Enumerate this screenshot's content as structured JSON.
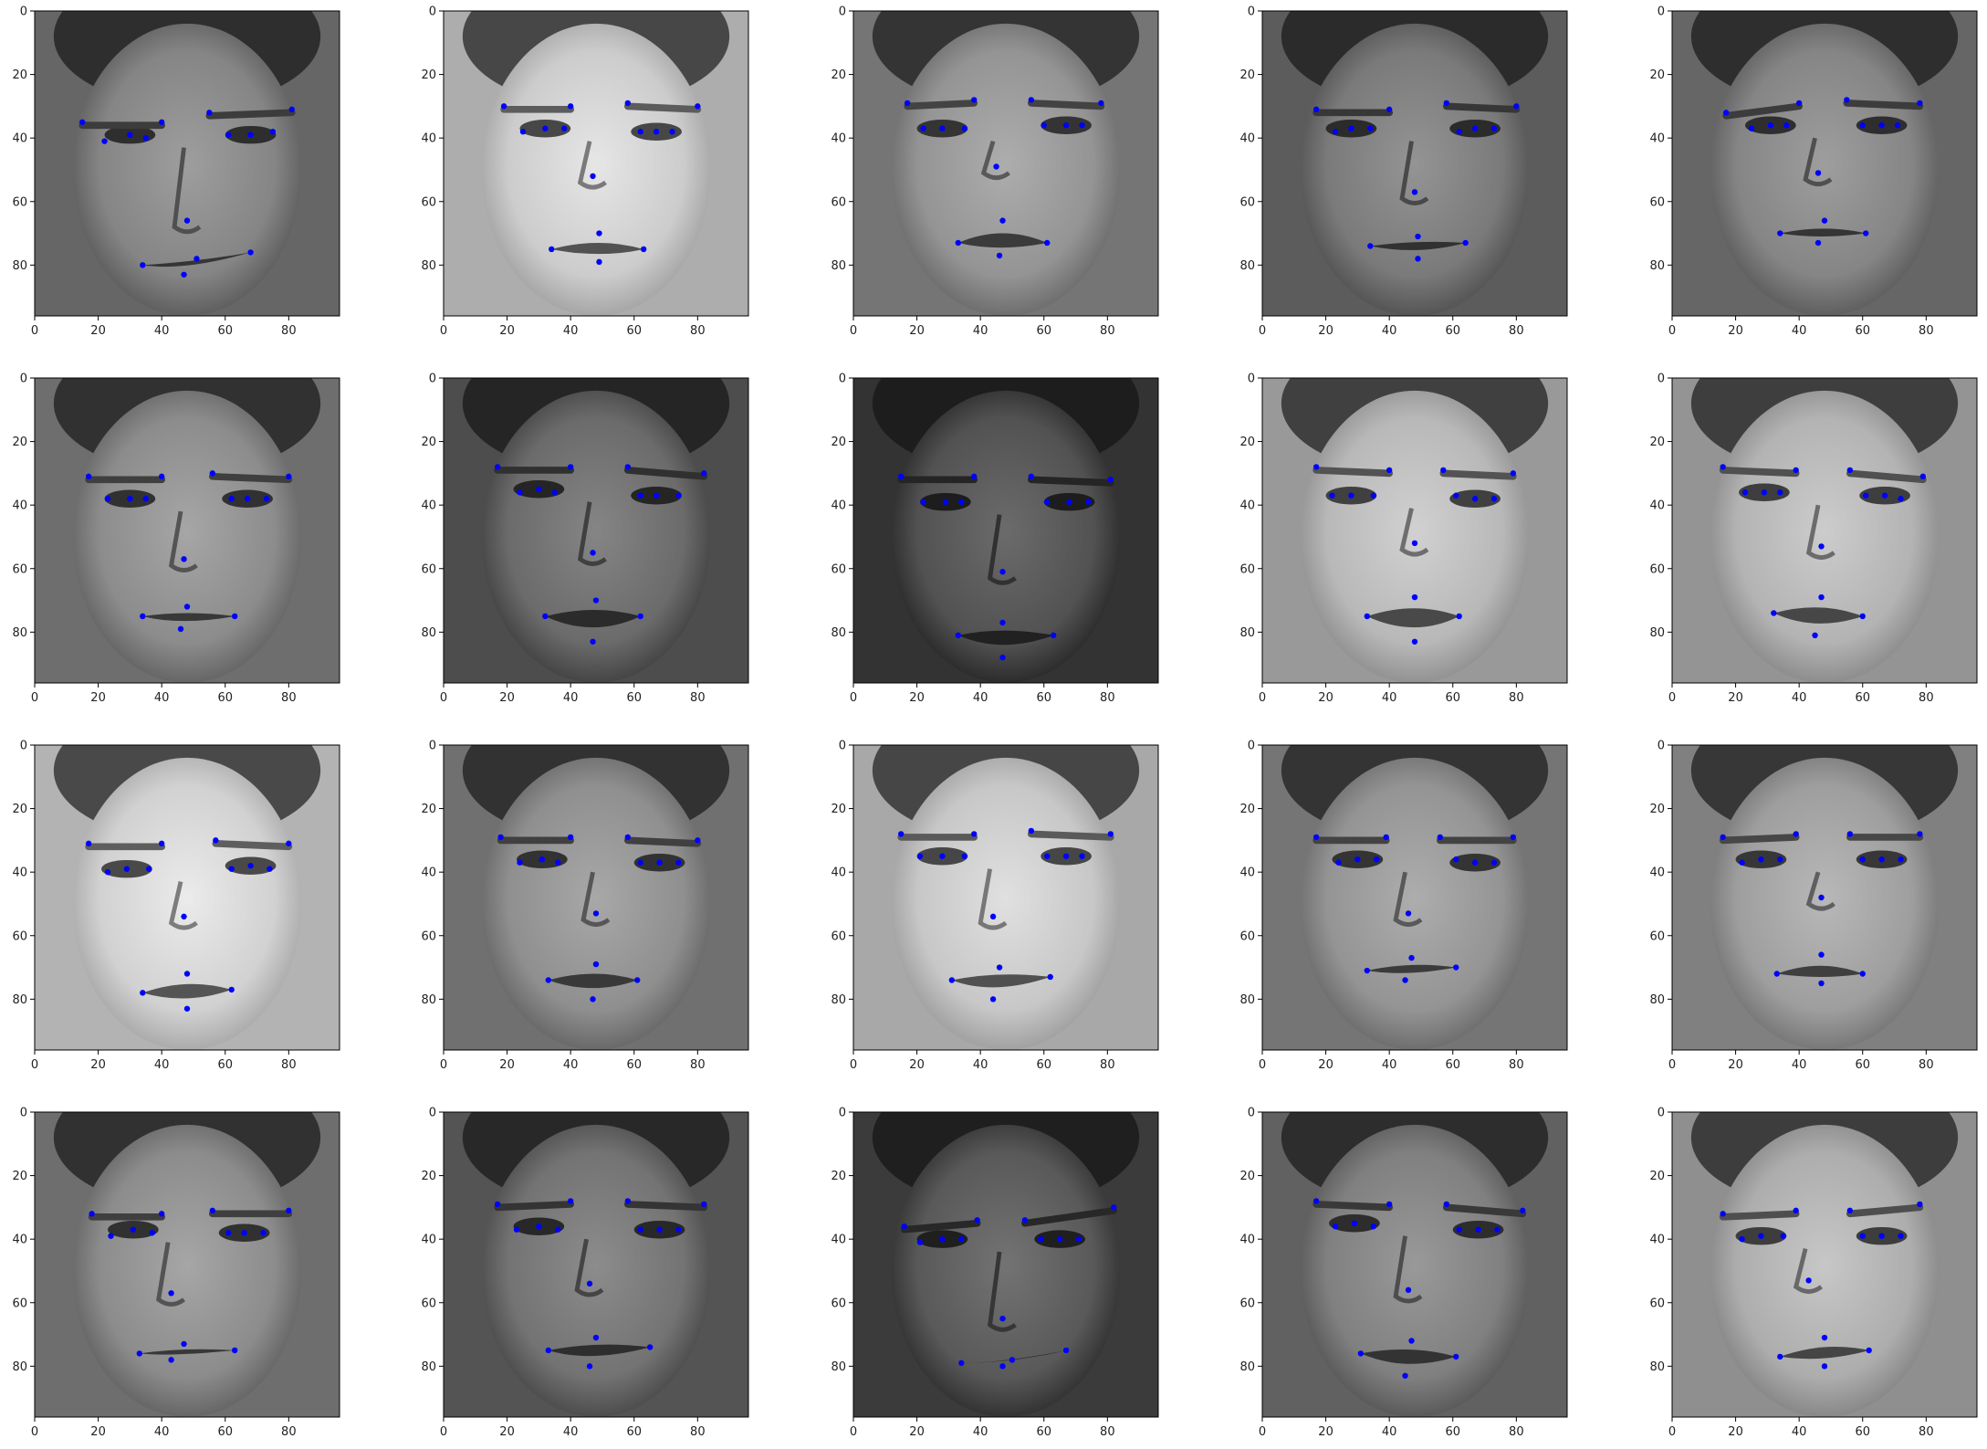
{
  "figure": {
    "rows": 4,
    "cols": 5,
    "marker_color": "#0000ff",
    "axis_color": "#000000",
    "image_colormap": "gray"
  },
  "axes": {
    "x_ticks": [
      0,
      20,
      40,
      60,
      80
    ],
    "y_ticks": [
      0,
      20,
      40,
      60,
      80
    ],
    "xlim": [
      0,
      96
    ],
    "ylim": [
      96,
      0
    ]
  },
  "panels": [
    {
      "tone": 0.52,
      "points": [
        [
          15,
          35
        ],
        [
          22,
          41
        ],
        [
          30,
          39
        ],
        [
          35,
          40
        ],
        [
          40,
          35
        ],
        [
          55,
          32
        ],
        [
          61,
          39
        ],
        [
          68,
          39
        ],
        [
          75,
          38
        ],
        [
          81,
          31
        ],
        [
          48,
          66
        ],
        [
          34,
          80
        ],
        [
          51,
          78
        ],
        [
          68,
          76
        ],
        [
          47,
          83
        ]
      ]
    },
    {
      "tone": 0.8,
      "points": [
        [
          19,
          30
        ],
        [
          25,
          38
        ],
        [
          32,
          37
        ],
        [
          38,
          37
        ],
        [
          40,
          30
        ],
        [
          58,
          29
        ],
        [
          62,
          38
        ],
        [
          67,
          38
        ],
        [
          72,
          38
        ],
        [
          80,
          30
        ],
        [
          47,
          52
        ],
        [
          34,
          75
        ],
        [
          49,
          70
        ],
        [
          63,
          75
        ],
        [
          49,
          79
        ]
      ]
    },
    {
      "tone": 0.58,
      "points": [
        [
          17,
          29
        ],
        [
          22,
          37
        ],
        [
          28,
          37
        ],
        [
          35,
          37
        ],
        [
          38,
          28
        ],
        [
          56,
          28
        ],
        [
          60,
          36
        ],
        [
          67,
          36
        ],
        [
          72,
          36
        ],
        [
          78,
          29
        ],
        [
          45,
          49
        ],
        [
          33,
          73
        ],
        [
          47,
          66
        ],
        [
          61,
          73
        ],
        [
          46,
          77
        ]
      ]
    },
    {
      "tone": 0.48,
      "points": [
        [
          17,
          31
        ],
        [
          23,
          38
        ],
        [
          28,
          37
        ],
        [
          34,
          37
        ],
        [
          40,
          31
        ],
        [
          58,
          29
        ],
        [
          62,
          38
        ],
        [
          67,
          37
        ],
        [
          73,
          37
        ],
        [
          80,
          30
        ],
        [
          48,
          57
        ],
        [
          34,
          74
        ],
        [
          49,
          71
        ],
        [
          64,
          73
        ],
        [
          49,
          78
        ]
      ]
    },
    {
      "tone": 0.52,
      "points": [
        [
          17,
          32
        ],
        [
          25,
          37
        ],
        [
          31,
          36
        ],
        [
          36,
          36
        ],
        [
          40,
          29
        ],
        [
          55,
          28
        ],
        [
          60,
          36
        ],
        [
          66,
          36
        ],
        [
          71,
          36
        ],
        [
          78,
          29
        ],
        [
          46,
          51
        ],
        [
          34,
          70
        ],
        [
          48,
          66
        ],
        [
          61,
          70
        ],
        [
          46,
          73
        ]
      ]
    },
    {
      "tone": 0.55,
      "points": [
        [
          17,
          31
        ],
        [
          23,
          38
        ],
        [
          30,
          38
        ],
        [
          35,
          38
        ],
        [
          40,
          31
        ],
        [
          56,
          30
        ],
        [
          62,
          38
        ],
        [
          67,
          38
        ],
        [
          73,
          38
        ],
        [
          80,
          31
        ],
        [
          47,
          57
        ],
        [
          34,
          75
        ],
        [
          48,
          72
        ],
        [
          63,
          75
        ],
        [
          46,
          79
        ]
      ]
    },
    {
      "tone": 0.42,
      "points": [
        [
          17,
          28
        ],
        [
          24,
          36
        ],
        [
          30,
          35
        ],
        [
          35,
          36
        ],
        [
          40,
          28
        ],
        [
          58,
          28
        ],
        [
          62,
          37
        ],
        [
          67,
          37
        ],
        [
          74,
          37
        ],
        [
          82,
          30
        ],
        [
          47,
          55
        ],
        [
          32,
          75
        ],
        [
          48,
          70
        ],
        [
          62,
          75
        ],
        [
          47,
          83
        ]
      ]
    },
    {
      "tone": 0.32,
      "points": [
        [
          15,
          31
        ],
        [
          22,
          39
        ],
        [
          29,
          39
        ],
        [
          34,
          39
        ],
        [
          38,
          31
        ],
        [
          56,
          31
        ],
        [
          61,
          39
        ],
        [
          68,
          39
        ],
        [
          74,
          39
        ],
        [
          81,
          32
        ],
        [
          47,
          61
        ],
        [
          33,
          81
        ],
        [
          47,
          77
        ],
        [
          63,
          81
        ],
        [
          47,
          88
        ]
      ]
    },
    {
      "tone": 0.72,
      "points": [
        [
          17,
          28
        ],
        [
          22,
          37
        ],
        [
          28,
          37
        ],
        [
          35,
          37
        ],
        [
          40,
          29
        ],
        [
          57,
          29
        ],
        [
          61,
          37
        ],
        [
          67,
          38
        ],
        [
          73,
          38
        ],
        [
          79,
          30
        ],
        [
          48,
          52
        ],
        [
          33,
          75
        ],
        [
          48,
          69
        ],
        [
          62,
          75
        ],
        [
          48,
          83
        ]
      ]
    },
    {
      "tone": 0.7,
      "points": [
        [
          16,
          28
        ],
        [
          23,
          36
        ],
        [
          29,
          36
        ],
        [
          34,
          36
        ],
        [
          39,
          29
        ],
        [
          56,
          29
        ],
        [
          61,
          37
        ],
        [
          67,
          37
        ],
        [
          72,
          38
        ],
        [
          79,
          31
        ],
        [
          47,
          53
        ],
        [
          32,
          74
        ],
        [
          47,
          69
        ],
        [
          60,
          75
        ],
        [
          45,
          81
        ]
      ]
    },
    {
      "tone": 0.82,
      "points": [
        [
          17,
          31
        ],
        [
          23,
          40
        ],
        [
          29,
          39
        ],
        [
          36,
          39
        ],
        [
          40,
          31
        ],
        [
          57,
          30
        ],
        [
          62,
          39
        ],
        [
          68,
          38
        ],
        [
          74,
          39
        ],
        [
          80,
          31
        ],
        [
          47,
          54
        ],
        [
          34,
          78
        ],
        [
          48,
          72
        ],
        [
          62,
          77
        ],
        [
          48,
          83
        ]
      ]
    },
    {
      "tone": 0.56,
      "points": [
        [
          18,
          29
        ],
        [
          24,
          37
        ],
        [
          31,
          36
        ],
        [
          36,
          37
        ],
        [
          40,
          29
        ],
        [
          58,
          29
        ],
        [
          62,
          37
        ],
        [
          68,
          37
        ],
        [
          74,
          37
        ],
        [
          80,
          30
        ],
        [
          48,
          53
        ],
        [
          33,
          74
        ],
        [
          48,
          69
        ],
        [
          61,
          74
        ],
        [
          47,
          80
        ]
      ]
    },
    {
      "tone": 0.78,
      "points": [
        [
          15,
          28
        ],
        [
          21,
          35
        ],
        [
          28,
          35
        ],
        [
          35,
          35
        ],
        [
          38,
          28
        ],
        [
          56,
          27
        ],
        [
          61,
          35
        ],
        [
          67,
          35
        ],
        [
          72,
          35
        ],
        [
          81,
          28
        ],
        [
          44,
          54
        ],
        [
          31,
          74
        ],
        [
          46,
          70
        ],
        [
          62,
          73
        ],
        [
          44,
          80
        ]
      ]
    },
    {
      "tone": 0.58,
      "points": [
        [
          17,
          29
        ],
        [
          24,
          37
        ],
        [
          30,
          36
        ],
        [
          36,
          36
        ],
        [
          39,
          29
        ],
        [
          56,
          29
        ],
        [
          61,
          36
        ],
        [
          67,
          37
        ],
        [
          73,
          37
        ],
        [
          79,
          29
        ],
        [
          46,
          53
        ],
        [
          33,
          71
        ],
        [
          47,
          67
        ],
        [
          61,
          70
        ],
        [
          45,
          74
        ]
      ]
    },
    {
      "tone": 0.62,
      "points": [
        [
          16,
          29
        ],
        [
          22,
          37
        ],
        [
          28,
          36
        ],
        [
          34,
          36
        ],
        [
          39,
          28
        ],
        [
          56,
          28
        ],
        [
          60,
          36
        ],
        [
          66,
          36
        ],
        [
          72,
          36
        ],
        [
          78,
          28
        ],
        [
          47,
          48
        ],
        [
          33,
          72
        ],
        [
          47,
          66
        ],
        [
          60,
          72
        ],
        [
          47,
          75
        ]
      ]
    },
    {
      "tone": 0.55,
      "points": [
        [
          18,
          32
        ],
        [
          24,
          39
        ],
        [
          31,
          37
        ],
        [
          37,
          38
        ],
        [
          40,
          32
        ],
        [
          56,
          31
        ],
        [
          61,
          38
        ],
        [
          66,
          38
        ],
        [
          72,
          38
        ],
        [
          80,
          31
        ],
        [
          43,
          57
        ],
        [
          33,
          76
        ],
        [
          47,
          73
        ],
        [
          63,
          75
        ],
        [
          43,
          78
        ]
      ]
    },
    {
      "tone": 0.45,
      "points": [
        [
          17,
          29
        ],
        [
          23,
          37
        ],
        [
          30,
          36
        ],
        [
          36,
          37
        ],
        [
          40,
          28
        ],
        [
          58,
          28
        ],
        [
          62,
          37
        ],
        [
          68,
          37
        ],
        [
          74,
          37
        ],
        [
          82,
          29
        ],
        [
          46,
          54
        ],
        [
          33,
          75
        ],
        [
          48,
          71
        ],
        [
          65,
          74
        ],
        [
          46,
          80
        ]
      ]
    },
    {
      "tone": 0.35,
      "points": [
        [
          16,
          36
        ],
        [
          21,
          41
        ],
        [
          28,
          40
        ],
        [
          34,
          40
        ],
        [
          39,
          34
        ],
        [
          54,
          34
        ],
        [
          59,
          40
        ],
        [
          65,
          40
        ],
        [
          71,
          40
        ],
        [
          82,
          30
        ],
        [
          47,
          65
        ],
        [
          34,
          79
        ],
        [
          50,
          78
        ],
        [
          67,
          75
        ],
        [
          47,
          80
        ]
      ]
    },
    {
      "tone": 0.5,
      "points": [
        [
          17,
          28
        ],
        [
          23,
          36
        ],
        [
          29,
          35
        ],
        [
          35,
          36
        ],
        [
          40,
          29
        ],
        [
          58,
          29
        ],
        [
          62,
          37
        ],
        [
          68,
          37
        ],
        [
          74,
          37
        ],
        [
          82,
          31
        ],
        [
          46,
          56
        ],
        [
          31,
          76
        ],
        [
          47,
          72
        ],
        [
          61,
          77
        ],
        [
          45,
          83
        ]
      ]
    },
    {
      "tone": 0.68,
      "points": [
        [
          16,
          32
        ],
        [
          22,
          40
        ],
        [
          28,
          39
        ],
        [
          35,
          39
        ],
        [
          39,
          31
        ],
        [
          56,
          31
        ],
        [
          60,
          39
        ],
        [
          66,
          39
        ],
        [
          72,
          39
        ],
        [
          78,
          29
        ],
        [
          43,
          53
        ],
        [
          34,
          77
        ],
        [
          48,
          71
        ],
        [
          62,
          75
        ],
        [
          48,
          80
        ]
      ]
    }
  ]
}
